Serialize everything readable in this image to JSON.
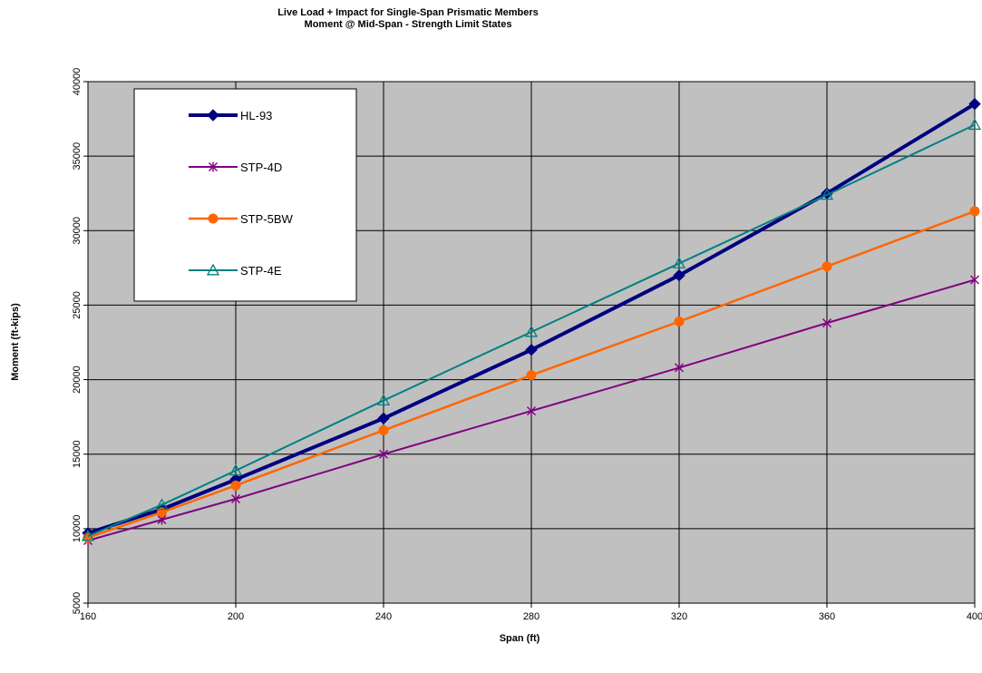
{
  "chart_data": {
    "type": "line",
    "title": "Live Load + Impact for Single-Span Prismatic Members",
    "subtitle": "Moment @ Mid-Span - Strength Limit States",
    "xlabel": "Span (ft)",
    "ylabel": "Moment (ft-kips)",
    "xlim": [
      160,
      400
    ],
    "ylim": [
      5000,
      40000
    ],
    "xticks": [
      160,
      200,
      240,
      280,
      320,
      360,
      400
    ],
    "yticks": [
      5000,
      10000,
      15000,
      20000,
      25000,
      30000,
      35000,
      40000
    ],
    "x": [
      160,
      180,
      200,
      240,
      280,
      320,
      360,
      400
    ],
    "grid": true,
    "legend_position": "top-left",
    "plot_background": "#c0c0c0",
    "series": [
      {
        "name": "HL-93",
        "color": "#000080",
        "marker": "diamond",
        "values": [
          9700,
          11300,
          13300,
          17400,
          22000,
          27000,
          32500,
          38500
        ]
      },
      {
        "name": "STP-4D",
        "color": "#800080",
        "marker": "star",
        "values": [
          9200,
          10600,
          12000,
          15000,
          17900,
          20800,
          23800,
          26700
        ]
      },
      {
        "name": "STP-5BW",
        "color": "#ff6600",
        "marker": "circle",
        "values": [
          9400,
          11100,
          12900,
          16600,
          20300,
          23900,
          27600,
          31300
        ]
      },
      {
        "name": "STP-4E",
        "color": "#008080",
        "marker": "triangle",
        "values": [
          9500,
          11600,
          13900,
          18600,
          23200,
          27800,
          32400,
          37100
        ]
      }
    ]
  }
}
